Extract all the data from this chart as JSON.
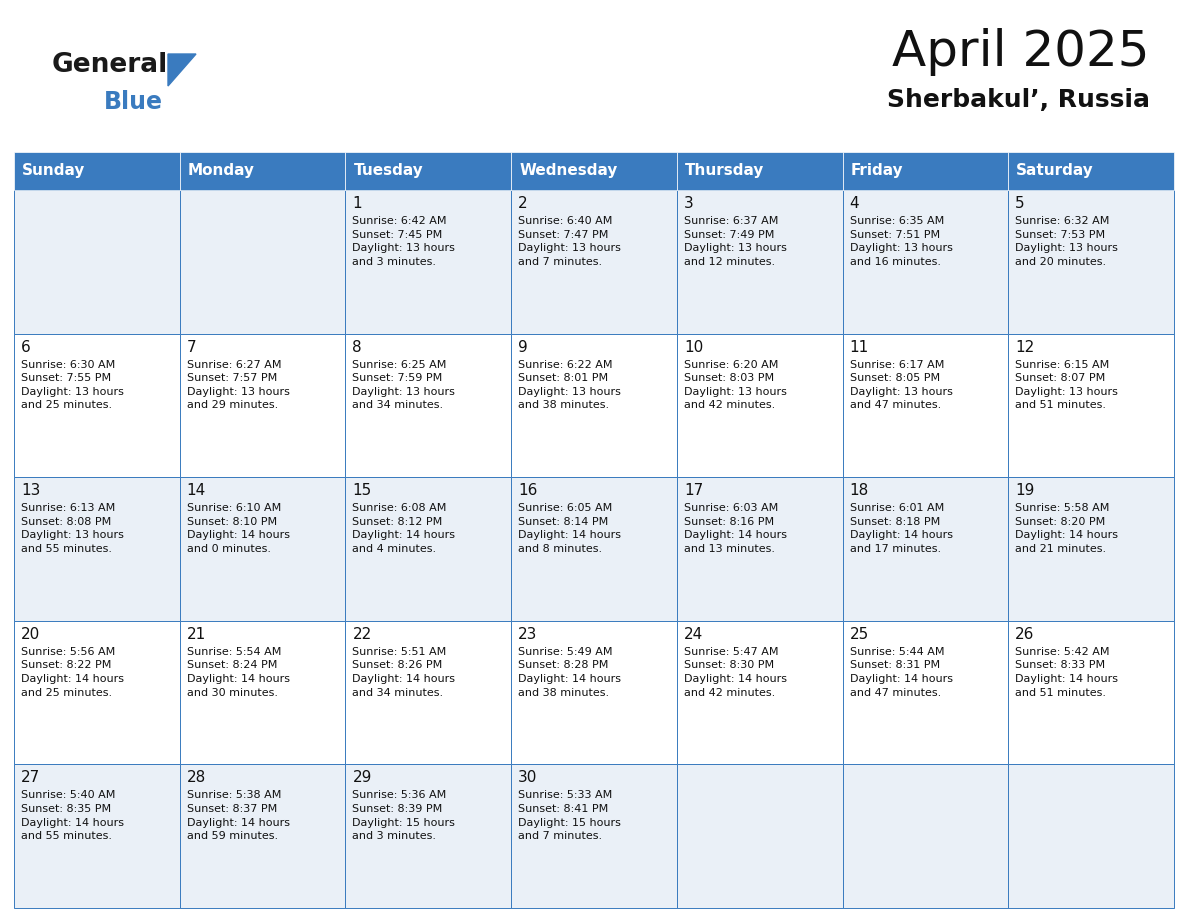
{
  "title": "April 2025",
  "subtitle": "Sherbakul’, Russia",
  "header_color": "#3a7bbf",
  "header_text_color": "#ffffff",
  "bg_color": "#ffffff",
  "cell_bg_even": "#eaf0f7",
  "cell_bg_odd": "#ffffff",
  "border_color": "#3a7bbf",
  "day_headers": [
    "Sunday",
    "Monday",
    "Tuesday",
    "Wednesday",
    "Thursday",
    "Friday",
    "Saturday"
  ],
  "weeks": [
    [
      {
        "day": 0,
        "text": ""
      },
      {
        "day": 0,
        "text": ""
      },
      {
        "day": 1,
        "text": "Sunrise: 6:42 AM\nSunset: 7:45 PM\nDaylight: 13 hours\nand 3 minutes."
      },
      {
        "day": 2,
        "text": "Sunrise: 6:40 AM\nSunset: 7:47 PM\nDaylight: 13 hours\nand 7 minutes."
      },
      {
        "day": 3,
        "text": "Sunrise: 6:37 AM\nSunset: 7:49 PM\nDaylight: 13 hours\nand 12 minutes."
      },
      {
        "day": 4,
        "text": "Sunrise: 6:35 AM\nSunset: 7:51 PM\nDaylight: 13 hours\nand 16 minutes."
      },
      {
        "day": 5,
        "text": "Sunrise: 6:32 AM\nSunset: 7:53 PM\nDaylight: 13 hours\nand 20 minutes."
      }
    ],
    [
      {
        "day": 6,
        "text": "Sunrise: 6:30 AM\nSunset: 7:55 PM\nDaylight: 13 hours\nand 25 minutes."
      },
      {
        "day": 7,
        "text": "Sunrise: 6:27 AM\nSunset: 7:57 PM\nDaylight: 13 hours\nand 29 minutes."
      },
      {
        "day": 8,
        "text": "Sunrise: 6:25 AM\nSunset: 7:59 PM\nDaylight: 13 hours\nand 34 minutes."
      },
      {
        "day": 9,
        "text": "Sunrise: 6:22 AM\nSunset: 8:01 PM\nDaylight: 13 hours\nand 38 minutes."
      },
      {
        "day": 10,
        "text": "Sunrise: 6:20 AM\nSunset: 8:03 PM\nDaylight: 13 hours\nand 42 minutes."
      },
      {
        "day": 11,
        "text": "Sunrise: 6:17 AM\nSunset: 8:05 PM\nDaylight: 13 hours\nand 47 minutes."
      },
      {
        "day": 12,
        "text": "Sunrise: 6:15 AM\nSunset: 8:07 PM\nDaylight: 13 hours\nand 51 minutes."
      }
    ],
    [
      {
        "day": 13,
        "text": "Sunrise: 6:13 AM\nSunset: 8:08 PM\nDaylight: 13 hours\nand 55 minutes."
      },
      {
        "day": 14,
        "text": "Sunrise: 6:10 AM\nSunset: 8:10 PM\nDaylight: 14 hours\nand 0 minutes."
      },
      {
        "day": 15,
        "text": "Sunrise: 6:08 AM\nSunset: 8:12 PM\nDaylight: 14 hours\nand 4 minutes."
      },
      {
        "day": 16,
        "text": "Sunrise: 6:05 AM\nSunset: 8:14 PM\nDaylight: 14 hours\nand 8 minutes."
      },
      {
        "day": 17,
        "text": "Sunrise: 6:03 AM\nSunset: 8:16 PM\nDaylight: 14 hours\nand 13 minutes."
      },
      {
        "day": 18,
        "text": "Sunrise: 6:01 AM\nSunset: 8:18 PM\nDaylight: 14 hours\nand 17 minutes."
      },
      {
        "day": 19,
        "text": "Sunrise: 5:58 AM\nSunset: 8:20 PM\nDaylight: 14 hours\nand 21 minutes."
      }
    ],
    [
      {
        "day": 20,
        "text": "Sunrise: 5:56 AM\nSunset: 8:22 PM\nDaylight: 14 hours\nand 25 minutes."
      },
      {
        "day": 21,
        "text": "Sunrise: 5:54 AM\nSunset: 8:24 PM\nDaylight: 14 hours\nand 30 minutes."
      },
      {
        "day": 22,
        "text": "Sunrise: 5:51 AM\nSunset: 8:26 PM\nDaylight: 14 hours\nand 34 minutes."
      },
      {
        "day": 23,
        "text": "Sunrise: 5:49 AM\nSunset: 8:28 PM\nDaylight: 14 hours\nand 38 minutes."
      },
      {
        "day": 24,
        "text": "Sunrise: 5:47 AM\nSunset: 8:30 PM\nDaylight: 14 hours\nand 42 minutes."
      },
      {
        "day": 25,
        "text": "Sunrise: 5:44 AM\nSunset: 8:31 PM\nDaylight: 14 hours\nand 47 minutes."
      },
      {
        "day": 26,
        "text": "Sunrise: 5:42 AM\nSunset: 8:33 PM\nDaylight: 14 hours\nand 51 minutes."
      }
    ],
    [
      {
        "day": 27,
        "text": "Sunrise: 5:40 AM\nSunset: 8:35 PM\nDaylight: 14 hours\nand 55 minutes."
      },
      {
        "day": 28,
        "text": "Sunrise: 5:38 AM\nSunset: 8:37 PM\nDaylight: 14 hours\nand 59 minutes."
      },
      {
        "day": 29,
        "text": "Sunrise: 5:36 AM\nSunset: 8:39 PM\nDaylight: 15 hours\nand 3 minutes."
      },
      {
        "day": 30,
        "text": "Sunrise: 5:33 AM\nSunset: 8:41 PM\nDaylight: 15 hours\nand 7 minutes."
      },
      {
        "day": 0,
        "text": ""
      },
      {
        "day": 0,
        "text": ""
      },
      {
        "day": 0,
        "text": ""
      }
    ]
  ],
  "logo_general_color": "#1a1a1a",
  "logo_blue_color": "#3a7bbf",
  "title_fontsize": 36,
  "subtitle_fontsize": 18,
  "header_fontsize": 11,
  "day_num_fontsize": 11,
  "cell_text_fontsize": 8
}
